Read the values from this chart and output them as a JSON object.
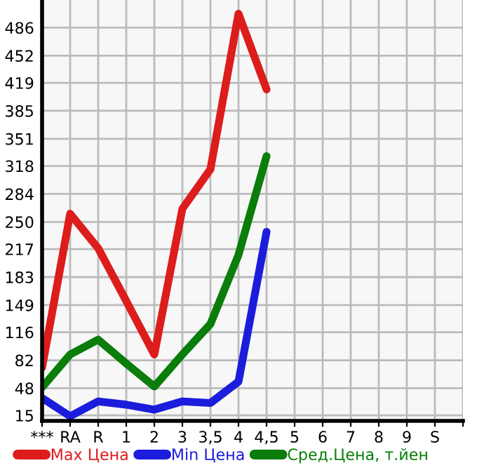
{
  "chart_data": {
    "type": "line",
    "categories": [
      "***",
      "RA",
      "R",
      "1",
      "2",
      "3",
      "3,5",
      "4",
      "4,5",
      "5",
      "6",
      "7",
      "8",
      "9",
      "S",
      null
    ],
    "series": [
      {
        "name": "Max Цена",
        "color": "#dd1c1c",
        "values": [
          73,
          260,
          218,
          154,
          89,
          266,
          314,
          503,
          411,
          null,
          null,
          null,
          null,
          null,
          null,
          null
        ]
      },
      {
        "name": "Min Цена",
        "color": "#1c1cdd",
        "values": [
          36,
          14,
          32,
          28,
          22,
          32,
          30,
          56,
          238,
          null,
          null,
          null,
          null,
          null,
          null,
          null
        ]
      },
      {
        "name": "Сред.Цена, т.йен",
        "color": "#0a7d0a",
        "values": [
          49,
          89,
          107,
          78,
          50,
          89,
          126,
          210,
          330,
          null,
          null,
          null,
          null,
          null,
          null,
          null
        ]
      }
    ],
    "ylim": [
      8.3,
      519.6
    ],
    "yticks": [
      15,
      48,
      82,
      116,
      149,
      183,
      217,
      250,
      284,
      318,
      351,
      385,
      419,
      452,
      486
    ],
    "grid": true,
    "legend": "bottom",
    "marker": "none",
    "line_style": "solid"
  }
}
